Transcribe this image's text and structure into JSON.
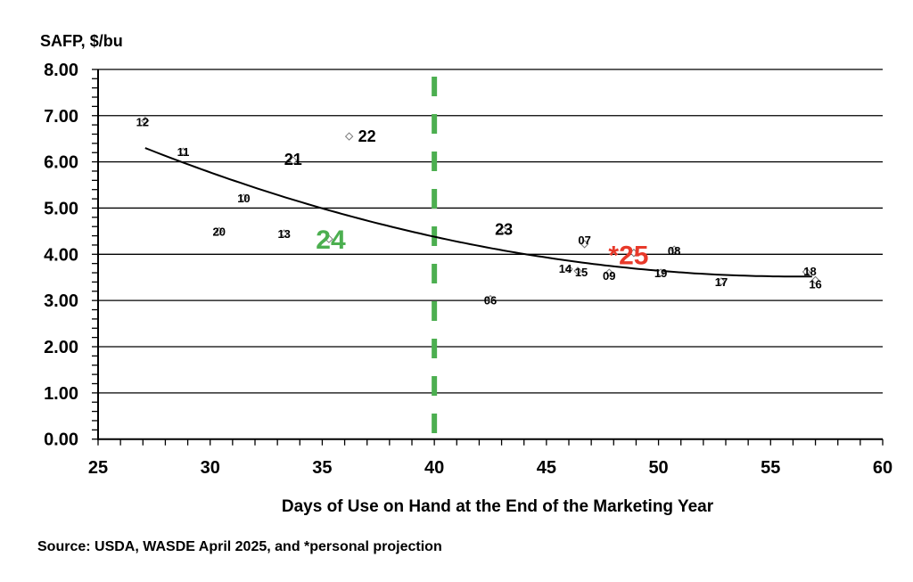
{
  "chart_data": {
    "type": "scatter",
    "title": "",
    "ylabel": "SAFP, $/bu",
    "xlabel": "Days of Use on Hand at the End of the Marketing Year",
    "source": "Source: USDA, WASDE April 2025, and *personal projection",
    "xlim": [
      25,
      60
    ],
    "ylim": [
      0,
      8
    ],
    "x_ticks": [
      "25",
      "30",
      "35",
      "40",
      "45",
      "50",
      "55",
      "60"
    ],
    "y_ticks": [
      "0.00",
      "1.00",
      "2.00",
      "3.00",
      "4.00",
      "5.00",
      "6.00",
      "7.00",
      "8.00"
    ],
    "grid": "horizontal",
    "colors": {
      "default": "#000000",
      "highlight_green": "#4caf50",
      "projection_red": "#e8392a",
      "reference_line": "#4caf50"
    },
    "reference_line": {
      "x": 40,
      "style": "dashed",
      "color": "#4caf50"
    },
    "trendline": {
      "type": "polynomial-2",
      "x_range": [
        27.1,
        57.0
      ],
      "center": 40,
      "coefficients": [
        4.38,
        -0.1064,
        0.003286
      ]
    },
    "points": [
      {
        "label": "06",
        "x": 42.5,
        "y": 3.03
      },
      {
        "label": "07",
        "x": 46.7,
        "y": 4.22
      },
      {
        "label": "08",
        "x": 50.7,
        "y": 4.1
      },
      {
        "label": "09",
        "x": 47.8,
        "y": 3.6
      },
      {
        "label": "10",
        "x": 31.5,
        "y": 5.22
      },
      {
        "label": "11",
        "x": 28.8,
        "y": 6.22
      },
      {
        "label": "12",
        "x": 27.1,
        "y": 6.89
      },
      {
        "label": "13",
        "x": 33.3,
        "y": 4.45
      },
      {
        "label": "14",
        "x": 46.0,
        "y": 3.68
      },
      {
        "label": "15",
        "x": 46.4,
        "y": 3.64
      },
      {
        "label": "16",
        "x": 57.0,
        "y": 3.44
      },
      {
        "label": "17",
        "x": 52.8,
        "y": 3.41
      },
      {
        "label": "18",
        "x": 56.6,
        "y": 3.62
      },
      {
        "label": "19",
        "x": 50.1,
        "y": 3.6
      },
      {
        "label": "20",
        "x": 30.4,
        "y": 4.5
      },
      {
        "label": "21",
        "x": 33.7,
        "y": 6.03
      },
      {
        "label": "22",
        "x": 36.2,
        "y": 6.55
      },
      {
        "label": "23",
        "x": 43.1,
        "y": 4.52
      },
      {
        "label": "24",
        "x": 35.3,
        "y": 4.33,
        "color": "#4caf50"
      },
      {
        "label": "*25",
        "x": 48.9,
        "y": 4.03,
        "color": "#e8392a"
      }
    ]
  }
}
